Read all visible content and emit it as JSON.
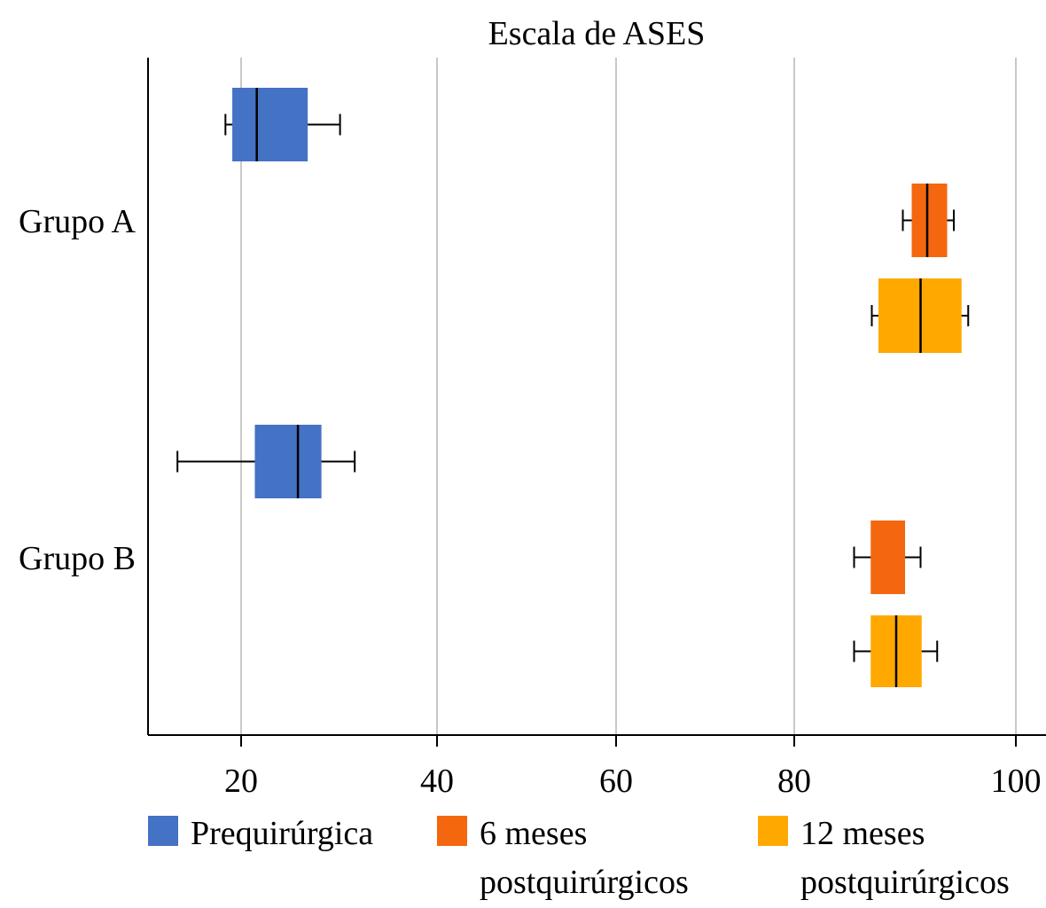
{
  "chart_data": {
    "type": "boxplot",
    "orientation": "horizontal",
    "title": "Escala de ASES",
    "xlabel": "",
    "ylabel": "",
    "xlim": [
      10,
      103
    ],
    "xticks": [
      20,
      40,
      60,
      80,
      100
    ],
    "grid": true,
    "categories": [
      "Grupo A",
      "Grupo B"
    ],
    "colors": {
      "Prequirúrgica": "#4472C4",
      "6 meses postquirúrgicos": "#F4670F",
      "12 meses postquirúrgicos": "#FFA800"
    },
    "series": [
      {
        "name": "Prequirúrgica",
        "name_lines": [
          "Prequirúrgica"
        ],
        "color": "#4472C4",
        "values": [
          {
            "min": 18.4,
            "q1": 19.1,
            "median": 21.6,
            "q3": 26.8,
            "max": 30.1
          },
          {
            "min": 13.5,
            "q1": 21.4,
            "median": 25.8,
            "q3": 28.2,
            "max": 31.6
          }
        ]
      },
      {
        "name": "6 meses postquirúrgicos",
        "name_lines": [
          "6 meses",
          "postquirúrgicos"
        ],
        "color": "#F4670F",
        "values": [
          {
            "min": 89.8,
            "q1": 90.6,
            "median": 92.0,
            "q3": 93.8,
            "max": 94.4
          },
          {
            "min": 85.4,
            "q1": 86.9,
            "median": null,
            "q3": 90.0,
            "max": 91.4
          }
        ]
      },
      {
        "name": "12 meses postquirúrgicos",
        "name_lines": [
          "12 meses",
          "postquirúrgicos"
        ],
        "color": "#FFA800",
        "values": [
          {
            "min": 87.0,
            "q1": 87.6,
            "median": 91.4,
            "q3": 95.1,
            "max": 95.7
          },
          {
            "min": 85.4,
            "q1": 86.9,
            "median": 89.2,
            "q3": 91.5,
            "max": 92.9
          }
        ]
      }
    ],
    "legend": "bottom"
  }
}
